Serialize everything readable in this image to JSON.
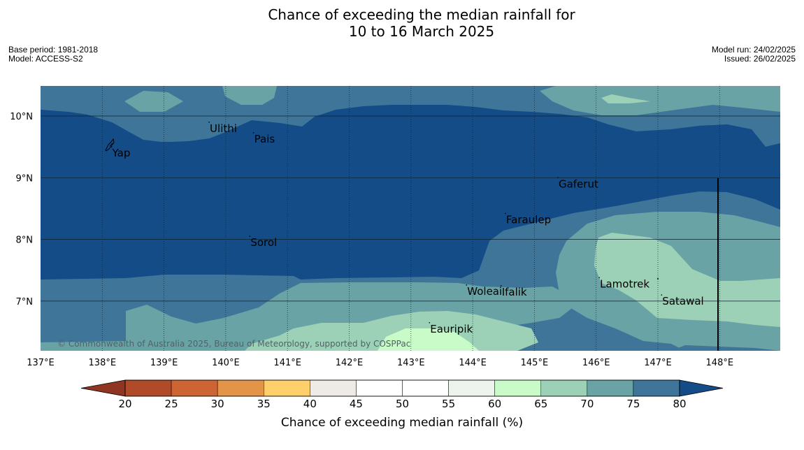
{
  "title": {
    "line1": "Chance of exceeding the median rainfall for",
    "line2": "10 to 16 March 2025"
  },
  "meta_left": {
    "base_period": "Base period: 1981-2018",
    "model": "Model: ACCESS-S2"
  },
  "meta_right": {
    "model_run": "Model run: 24/02/2025",
    "issued": "Issued: 26/02/2025"
  },
  "map": {
    "lat_labels": [
      "10°N",
      "9°N",
      "8°N",
      "7°N"
    ],
    "lon_labels": [
      "137°E",
      "138°E",
      "139°E",
      "140°E",
      "141°E",
      "142°E",
      "143°E",
      "144°E",
      "145°E",
      "146°E",
      "147°E",
      "148°E"
    ],
    "places": [
      {
        "name": "Ulithi",
        "lon": 139.73,
        "lat": 9.9
      },
      {
        "name": "Pais",
        "lon": 140.45,
        "lat": 9.73
      },
      {
        "name": "Yap",
        "lon": 138.15,
        "lat": 9.5
      },
      {
        "name": "Gaferut",
        "lon": 145.38,
        "lat": 9.0
      },
      {
        "name": "Faraulep",
        "lon": 144.53,
        "lat": 8.42
      },
      {
        "name": "Sorol",
        "lon": 140.39,
        "lat": 8.05
      },
      {
        "name": "Lamotrek",
        "lon": 146.05,
        "lat": 7.38
      },
      {
        "name": "Woleai",
        "lon": 143.9,
        "lat": 7.26
      },
      {
        "name": "Ifalik",
        "lon": 144.46,
        "lat": 7.25
      },
      {
        "name": "Satawal",
        "lon": 147.06,
        "lat": 7.1
      },
      {
        "name": "Eauripik",
        "lon": 143.3,
        "lat": 6.65
      }
    ],
    "copyright": "© Commonwealth of Australia 2025, Bureau of Meteorology, supported by COSPPac",
    "colors": {
      "very_high": "#134c87",
      "high": "#3f7598",
      "mid_high": "#6aa3a5",
      "mid": "#9dd1b7",
      "low_mid": "#c9fbc9"
    }
  },
  "colorbar": {
    "label": "Chance of exceeding median rainfall (%)",
    "ticks": [
      "20",
      "25",
      "30",
      "35",
      "40",
      "45",
      "50",
      "55",
      "60",
      "65",
      "70",
      "75",
      "80"
    ],
    "colors": [
      "#8f3522",
      "#b04b2a",
      "#cd6434",
      "#e39449",
      "#fecf6a",
      "#eeeae5",
      "#ffffff",
      "#ffffff",
      "#edf4ed",
      "#c9fbc9",
      "#9dd1b7",
      "#6aa3a5",
      "#3f7598",
      "#134c87"
    ]
  }
}
